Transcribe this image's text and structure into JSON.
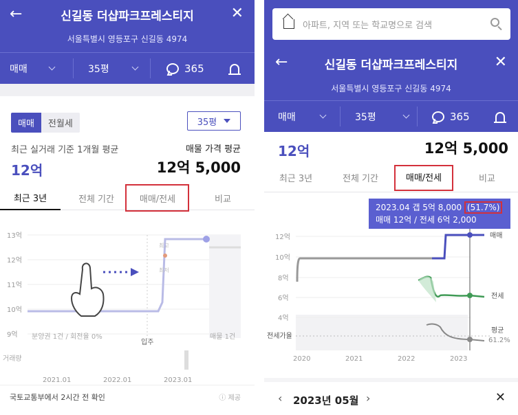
{
  "left": {
    "header": {
      "title": "신길동 더샵파크프레스티지",
      "address": "서울특별시 영등포구 신길동 4974",
      "trade_type": "매매",
      "area": "35평",
      "comments": "365"
    },
    "segment": {
      "on": "매매",
      "off": "전월세"
    },
    "area_select": "35평",
    "avg_caption": "최근 실거래 기준 1개월 평균",
    "avg_value": "12억",
    "listing_caption": "매물 가격 평균",
    "listing_value": "12억 5,000",
    "tabs": [
      "최근 3년",
      "전체 기간",
      "매매/전세",
      "비교"
    ],
    "chart": {
      "y_labels": [
        "13억",
        "12억",
        "11억",
        "10억",
        "9억"
      ],
      "x_labels": [
        "2021.01",
        "2022.01",
        "2023.01"
      ],
      "note_left": "분양권 1건 / 회전율 0%",
      "note_mid": "입주",
      "note_right": "매물 1건",
      "markers": [
        "최고",
        "최저"
      ],
      "volume_label": "거래량"
    },
    "footer": {
      "text": "국토교통부에서 2시간 전 확인",
      "right": "ⓘ 제공"
    }
  },
  "right": {
    "search": {
      "placeholder": "아파트, 지역 또는 학교명으로 검색"
    },
    "header": {
      "title": "신길동 더샵파크프레스티지",
      "address": "서울특별시 영등포구 신길동 4974",
      "trade_type": "매매",
      "area": "35평",
      "comments": "365"
    },
    "avg_value": "12억",
    "listing_value": "12억 5,000",
    "tabs": [
      "최근 3년",
      "전체 기간",
      "매매/전세",
      "비교"
    ],
    "tooltip": {
      "line1_prefix": "2023.04  갭 5억 8,000",
      "line1_pct": "(51.7%)",
      "line2": "매매 12억 / 전세 6억 2,000"
    },
    "chart": {
      "y_labels": [
        "12억",
        "10억",
        "8억",
        "6억",
        "4억"
      ],
      "ratio_label": "전세가율",
      "x_labels": [
        "2020",
        "2021",
        "2022",
        "2023"
      ],
      "legend_sale": "매매",
      "legend_jeonse": "전세",
      "legend_avg": "평균",
      "legend_avg_val": "61.2%"
    },
    "footer": {
      "month": "2023년 05월"
    },
    "colors": {
      "sale": "#4a4fbd",
      "jeonse": "#3f9a55",
      "gray": "#999999"
    }
  }
}
